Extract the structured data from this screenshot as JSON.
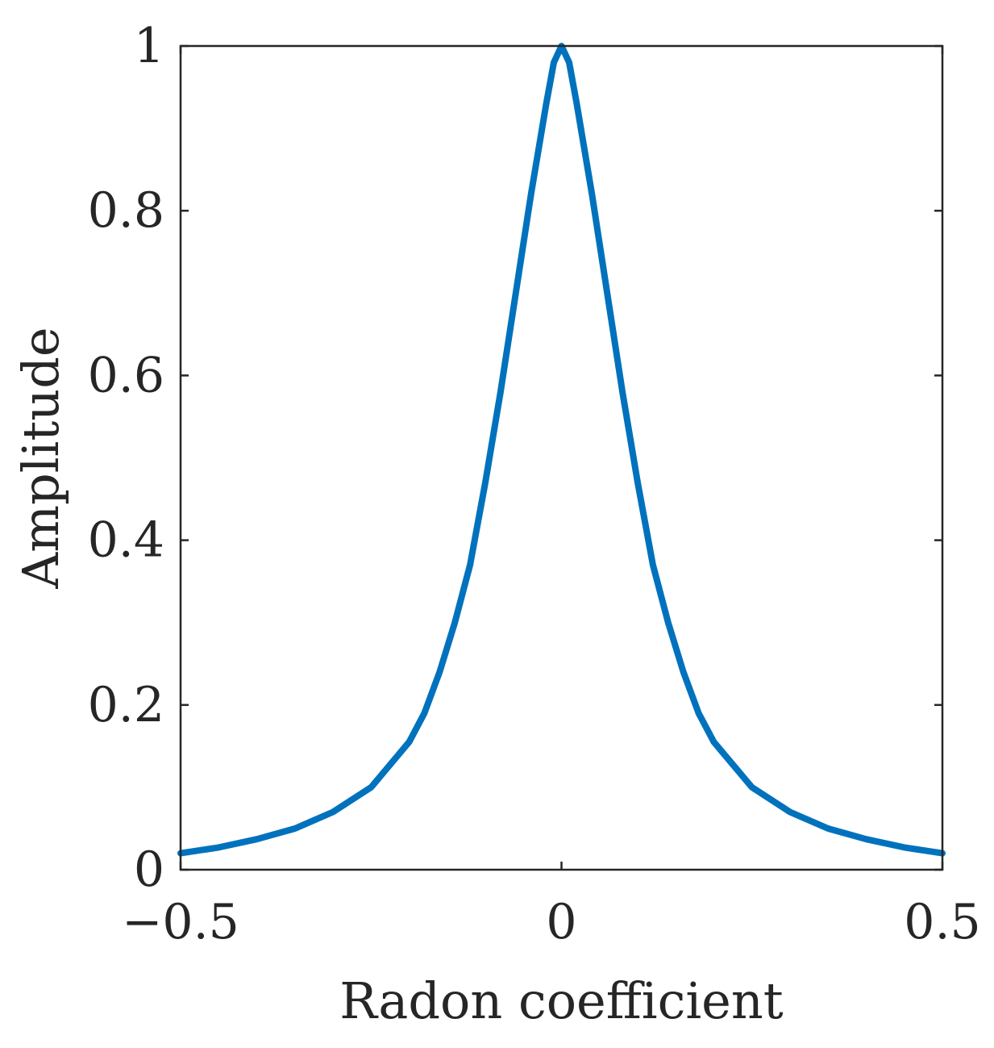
{
  "chart_data": {
    "type": "line",
    "title": "",
    "xlabel": "Radon coefficient",
    "ylabel": "Amplitude",
    "xlim": [
      -0.5,
      0.5
    ],
    "ylim": [
      0,
      1
    ],
    "grid": false,
    "xticks": [
      -0.5,
      0,
      0.5
    ],
    "xtick_labels": [
      "−0.5",
      "0",
      "0.5"
    ],
    "yticks": [
      0,
      0.2,
      0.4,
      0.6,
      0.8,
      1
    ],
    "ytick_labels": [
      "0",
      "0.2",
      "0.4",
      "0.6",
      "0.8",
      "1"
    ],
    "series": [
      {
        "name": "Amplitude",
        "color": "#0072BD",
        "x": [
          -0.5,
          -0.45,
          -0.4,
          -0.35,
          -0.3,
          -0.25,
          -0.2,
          -0.18,
          -0.16,
          -0.14,
          -0.12,
          -0.1,
          -0.08,
          -0.06,
          -0.04,
          -0.02,
          -0.01,
          0,
          0.01,
          0.02,
          0.04,
          0.06,
          0.08,
          0.1,
          0.12,
          0.14,
          0.16,
          0.18,
          0.2,
          0.25,
          0.3,
          0.35,
          0.4,
          0.45,
          0.5
        ],
        "y": [
          0.02,
          0.027,
          0.037,
          0.05,
          0.07,
          0.1,
          0.155,
          0.19,
          0.24,
          0.3,
          0.37,
          0.47,
          0.58,
          0.7,
          0.82,
          0.93,
          0.98,
          1.0,
          0.98,
          0.93,
          0.82,
          0.7,
          0.58,
          0.47,
          0.37,
          0.3,
          0.24,
          0.19,
          0.155,
          0.1,
          0.07,
          0.05,
          0.037,
          0.027,
          0.02
        ]
      }
    ]
  }
}
